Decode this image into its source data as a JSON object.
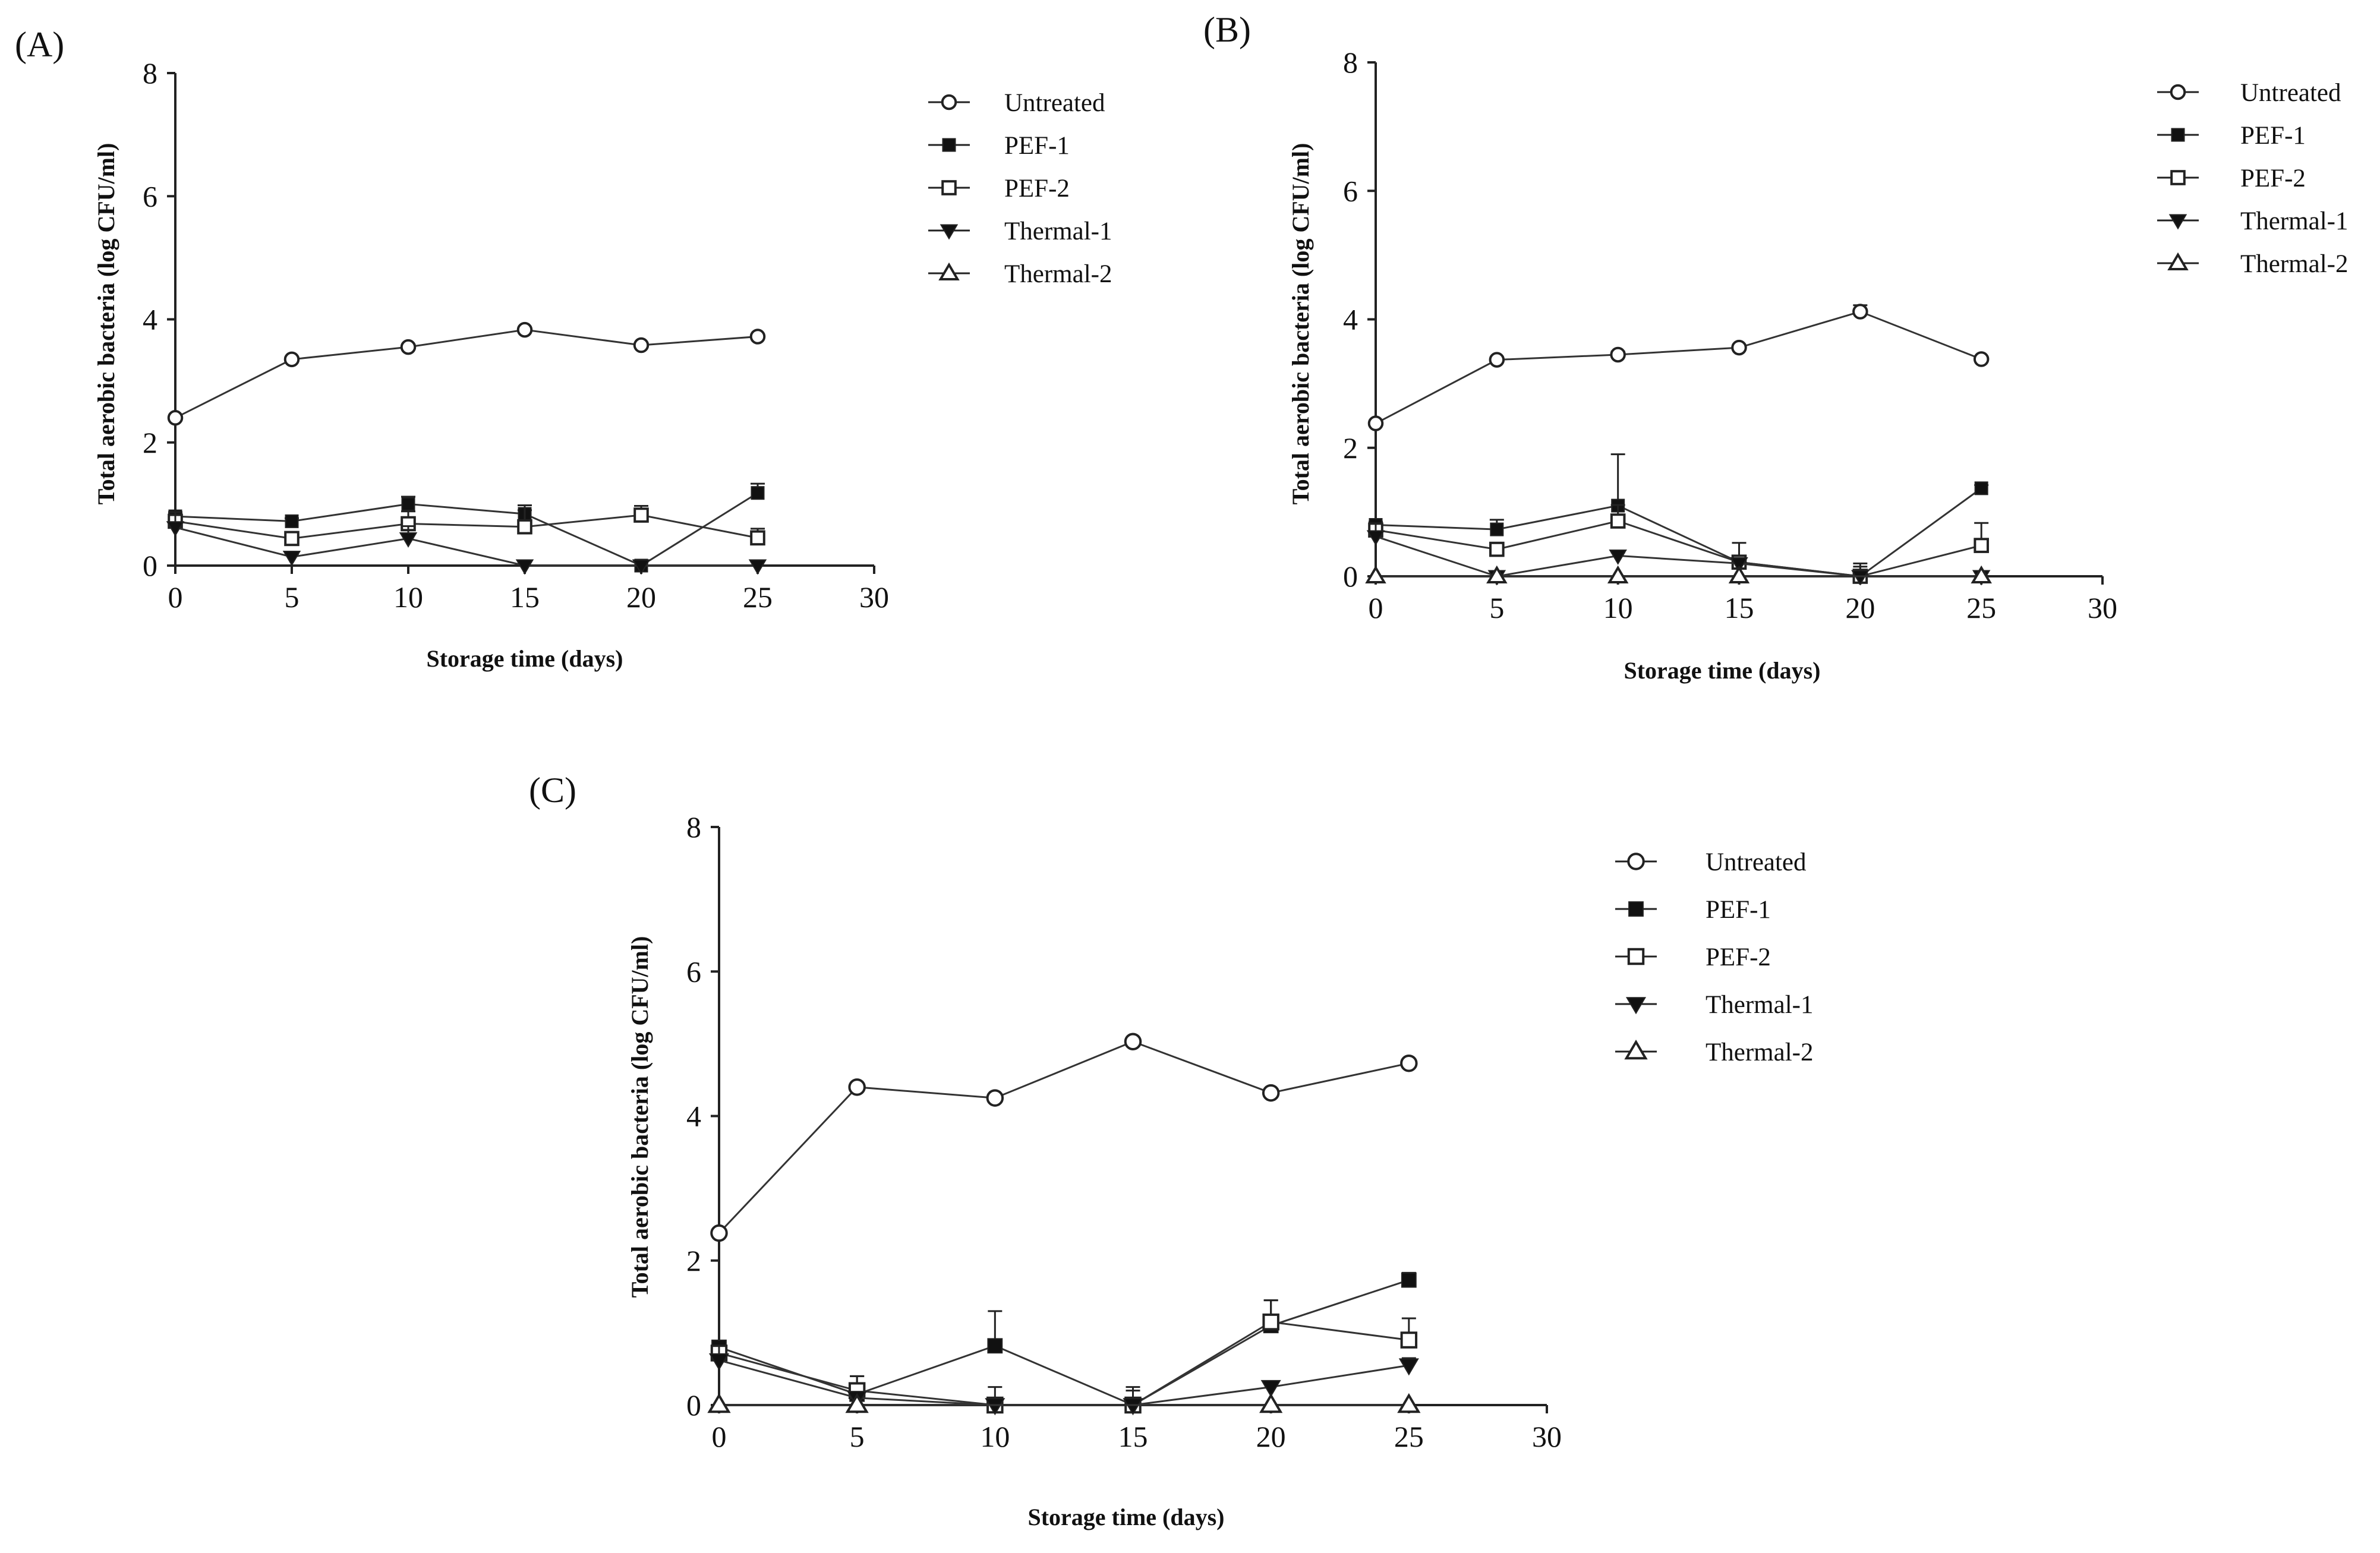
{
  "chart_data": [
    {
      "panel_label": "(A)",
      "type": "line",
      "xlabel": "Storage time (days)",
      "ylabel": "Total aerobic bacteria (log CFU/ml)",
      "xlim": [
        0,
        30
      ],
      "ylim": [
        0,
        8
      ],
      "xticks": [
        "0",
        "5",
        "10",
        "15",
        "20",
        "25",
        "30"
      ],
      "yticks": [
        "0",
        "2",
        "4",
        "6",
        "8"
      ],
      "x": [
        0,
        5,
        10,
        15,
        20,
        25
      ],
      "series": [
        {
          "name": "Untreated",
          "marker": "open-circle",
          "values": [
            2.4,
            3.35,
            3.55,
            3.83,
            3.58,
            3.72
          ],
          "err": [
            0.02,
            0.03,
            0.03,
            0.03,
            0.03,
            0.03
          ]
        },
        {
          "name": "PEF-1",
          "marker": "filled-square",
          "values": [
            0.8,
            0.72,
            1.0,
            0.84,
            0.0,
            1.18
          ],
          "err": [
            0.05,
            0.05,
            0.12,
            0.06,
            0.05,
            0.15
          ]
        },
        {
          "name": "PEF-2",
          "marker": "open-square",
          "values": [
            0.72,
            0.44,
            0.68,
            0.63,
            0.82,
            0.45
          ],
          "err": [
            0.05,
            0.08,
            0.2,
            0.35,
            0.15,
            0.15
          ]
        },
        {
          "name": "Thermal-1",
          "marker": "filled-triangle-down",
          "values": [
            0.62,
            0.14,
            0.44,
            0.0,
            0.0,
            0.0
          ],
          "err": [
            0.25,
            0.05,
            0.2,
            0.0,
            0.0,
            0.0
          ]
        },
        {
          "name": "Thermal-2",
          "marker": "open-triangle-up",
          "values": [
            null,
            null,
            null,
            null,
            null,
            null
          ],
          "err": [
            0,
            0,
            0,
            0,
            0,
            0
          ]
        }
      ]
    },
    {
      "panel_label": "(B)",
      "type": "line",
      "xlabel": "Storage time (days)",
      "ylabel": "Total aerobic bacteria (log CFU/ml)",
      "xlim": [
        0,
        30
      ],
      "ylim": [
        0,
        8
      ],
      "xticks": [
        "0",
        "5",
        "10",
        "15",
        "20",
        "25",
        "30"
      ],
      "yticks": [
        "0",
        "2",
        "4",
        "6",
        "8"
      ],
      "x": [
        0,
        5,
        10,
        15,
        20,
        25
      ],
      "series": [
        {
          "name": "Untreated",
          "marker": "open-circle",
          "values": [
            2.38,
            3.37,
            3.45,
            3.56,
            4.12,
            3.38
          ],
          "err": [
            0.02,
            0.03,
            0.05,
            0.03,
            0.1,
            0.03
          ]
        },
        {
          "name": "PEF-1",
          "marker": "filled-square",
          "values": [
            0.8,
            0.73,
            1.1,
            0.22,
            0.0,
            1.37
          ],
          "err": [
            0.05,
            0.15,
            0.8,
            0.3,
            0.2,
            0.05
          ]
        },
        {
          "name": "PEF-2",
          "marker": "open-square",
          "values": [
            0.72,
            0.42,
            0.86,
            0.22,
            0.0,
            0.48
          ],
          "err": [
            0.05,
            0.1,
            0.25,
            0.1,
            0.15,
            0.35
          ]
        },
        {
          "name": "Thermal-1",
          "marker": "filled-triangle-down",
          "values": [
            0.62,
            0.0,
            0.32,
            0.2,
            0.0,
            0.0
          ],
          "err": [
            0.2,
            0.0,
            0.05,
            0.05,
            0.0,
            0.0
          ]
        },
        {
          "name": "Thermal-2",
          "marker": "open-triangle-up",
          "values": [
            0.0,
            0.0,
            0.0,
            0.0,
            null,
            0.0
          ],
          "err": [
            0,
            0,
            0,
            0,
            0,
            0
          ]
        }
      ]
    },
    {
      "panel_label": "(C)",
      "type": "line",
      "xlabel": "Storage time (days)",
      "ylabel": "Total aerobic bacteria (log CFU/ml)",
      "xlim": [
        0,
        30
      ],
      "ylim": [
        0,
        8
      ],
      "xticks": [
        "0",
        "5",
        "10",
        "15",
        "20",
        "25",
        "30"
      ],
      "yticks": [
        "0",
        "2",
        "4",
        "6",
        "8"
      ],
      "x": [
        0,
        5,
        10,
        15,
        20,
        25
      ],
      "series": [
        {
          "name": "Untreated",
          "marker": "open-circle",
          "values": [
            2.38,
            4.4,
            4.25,
            5.03,
            4.32,
            4.73
          ],
          "err": [
            0.02,
            0.03,
            0.03,
            0.03,
            0.03,
            0.03
          ]
        },
        {
          "name": "PEF-1",
          "marker": "filled-square",
          "values": [
            0.8,
            0.15,
            0.82,
            0.0,
            1.1,
            1.73
          ],
          "err": [
            0.05,
            0.25,
            0.48,
            0.25,
            0.35,
            0.1
          ]
        },
        {
          "name": "PEF-2",
          "marker": "open-square",
          "values": [
            0.72,
            0.2,
            0.0,
            0.0,
            1.15,
            0.9
          ],
          "err": [
            0.05,
            0.2,
            0.25,
            0.2,
            0.3,
            0.3
          ]
        },
        {
          "name": "Thermal-1",
          "marker": "filled-triangle-down",
          "values": [
            0.62,
            0.1,
            0.0,
            0.0,
            0.25,
            0.55
          ],
          "err": [
            0.2,
            0.05,
            0.0,
            0.0,
            0.05,
            0.1
          ]
        },
        {
          "name": "Thermal-2",
          "marker": "open-triangle-up",
          "values": [
            0.0,
            0.0,
            null,
            null,
            0.0,
            0.0
          ],
          "err": [
            0,
            0,
            0,
            0,
            0,
            0
          ]
        }
      ]
    }
  ]
}
